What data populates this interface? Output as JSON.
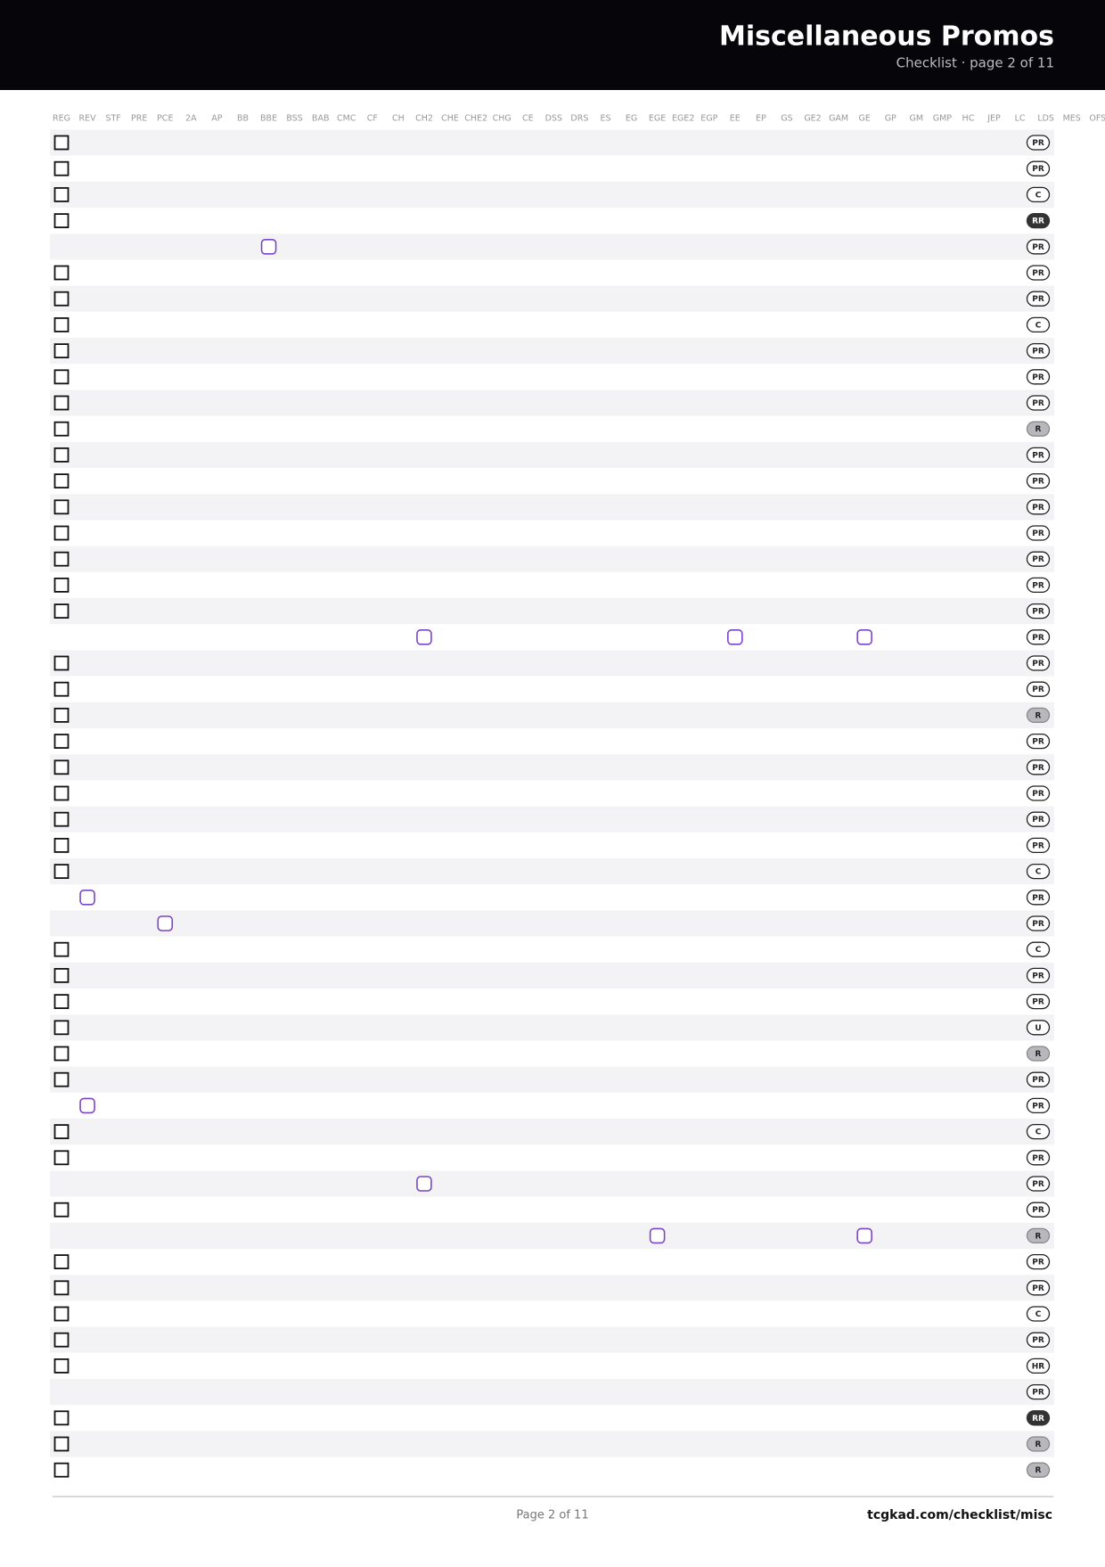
{
  "header": {
    "title": "Miscellaneous Promos",
    "subtitle": "Checklist · page 2 of 11"
  },
  "columns": [
    "REG",
    "REV",
    "STF",
    "PRE",
    "PCE",
    "2A",
    "AP",
    "BB",
    "BBE",
    "BSS",
    "BAB",
    "CMC",
    "CF",
    "CH",
    "CH2",
    "CHE",
    "CHE2",
    "CHG",
    "CE",
    "DSS",
    "DRS",
    "ES",
    "EG",
    "EGE",
    "EGE2",
    "EGP",
    "EE",
    "EP",
    "GS",
    "GE2",
    "GAM",
    "GE",
    "GP",
    "GM",
    "GMP",
    "HC",
    "JEP",
    "LC",
    "LDS",
    "MES",
    "OFS"
  ],
  "rows": [
    {
      "checks": [
        "REG"
      ],
      "rarity": "PR"
    },
    {
      "checks": [
        "REG"
      ],
      "rarity": "PR"
    },
    {
      "checks": [
        "REG"
      ],
      "rarity": "C"
    },
    {
      "checks": [
        "REG"
      ],
      "rarity": "RR"
    },
    {
      "checks": [
        "BBE"
      ],
      "rarity": "PR"
    },
    {
      "checks": [
        "REG"
      ],
      "rarity": "PR"
    },
    {
      "checks": [
        "REG"
      ],
      "rarity": "PR"
    },
    {
      "checks": [
        "REG"
      ],
      "rarity": "C"
    },
    {
      "checks": [
        "REG"
      ],
      "rarity": "PR"
    },
    {
      "checks": [
        "REG"
      ],
      "rarity": "PR"
    },
    {
      "checks": [
        "REG"
      ],
      "rarity": "PR"
    },
    {
      "checks": [
        "REG"
      ],
      "rarity": "R"
    },
    {
      "checks": [
        "REG"
      ],
      "rarity": "PR"
    },
    {
      "checks": [
        "REG"
      ],
      "rarity": "PR"
    },
    {
      "checks": [
        "REG"
      ],
      "rarity": "PR"
    },
    {
      "checks": [
        "REG"
      ],
      "rarity": "PR"
    },
    {
      "checks": [
        "REG"
      ],
      "rarity": "PR"
    },
    {
      "checks": [
        "REG"
      ],
      "rarity": "PR"
    },
    {
      "checks": [
        "REG"
      ],
      "rarity": "PR"
    },
    {
      "checks": [
        "CH2",
        "EE",
        "GE"
      ],
      "rarity": "PR"
    },
    {
      "checks": [
        "REG"
      ],
      "rarity": "PR"
    },
    {
      "checks": [
        "REG"
      ],
      "rarity": "PR"
    },
    {
      "checks": [
        "REG"
      ],
      "rarity": "R"
    },
    {
      "checks": [
        "REG"
      ],
      "rarity": "PR"
    },
    {
      "checks": [
        "REG"
      ],
      "rarity": "PR"
    },
    {
      "checks": [
        "REG"
      ],
      "rarity": "PR"
    },
    {
      "checks": [
        "REG"
      ],
      "rarity": "PR"
    },
    {
      "checks": [
        "REG"
      ],
      "rarity": "PR"
    },
    {
      "checks": [
        "REG"
      ],
      "rarity": "C"
    },
    {
      "checks": [
        "REV"
      ],
      "rarity": "PR"
    },
    {
      "checks": [
        "PCE"
      ],
      "rarity": "PR"
    },
    {
      "checks": [
        "REG"
      ],
      "rarity": "C"
    },
    {
      "checks": [
        "REG"
      ],
      "rarity": "PR"
    },
    {
      "checks": [
        "REG"
      ],
      "rarity": "PR"
    },
    {
      "checks": [
        "REG"
      ],
      "rarity": "U"
    },
    {
      "checks": [
        "REG"
      ],
      "rarity": "R"
    },
    {
      "checks": [
        "REG"
      ],
      "rarity": "PR"
    },
    {
      "checks": [
        "REV"
      ],
      "rarity": "PR"
    },
    {
      "checks": [
        "REG"
      ],
      "rarity": "C"
    },
    {
      "checks": [
        "REG"
      ],
      "rarity": "PR"
    },
    {
      "checks": [
        "CH2"
      ],
      "rarity": "PR"
    },
    {
      "checks": [
        "REG"
      ],
      "rarity": "PR"
    },
    {
      "checks": [
        "EGE",
        "GE"
      ],
      "rarity": "R"
    },
    {
      "checks": [
        "REG"
      ],
      "rarity": "PR"
    },
    {
      "checks": [
        "REG"
      ],
      "rarity": "PR"
    },
    {
      "checks": [
        "REG"
      ],
      "rarity": "C"
    },
    {
      "checks": [
        "REG"
      ],
      "rarity": "PR"
    },
    {
      "checks": [
        "REG"
      ],
      "rarity": "HR"
    },
    {
      "checks": [],
      "rarity": "PR"
    },
    {
      "checks": [
        "REG"
      ],
      "rarity": "RR"
    },
    {
      "checks": [
        "REG"
      ],
      "rarity": "R"
    },
    {
      "checks": [
        "REG"
      ],
      "rarity": "R"
    }
  ],
  "footer": {
    "page": "Page 2 of 11",
    "url": "tcgkad.com/checklist/misc"
  }
}
